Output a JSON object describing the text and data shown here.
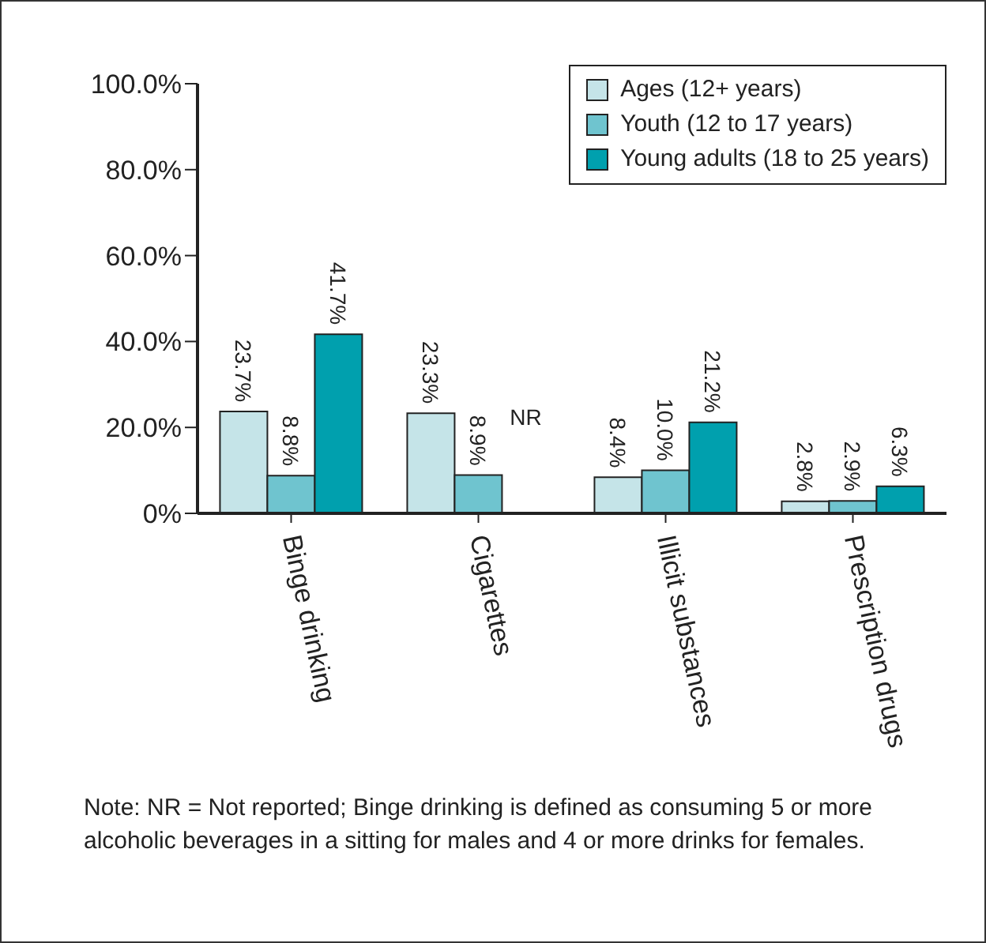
{
  "chart_data": {
    "type": "bar",
    "categories": [
      "Binge drinking",
      "Cigarettes",
      "Illicit substances",
      "Prescription drugs"
    ],
    "series": [
      {
        "name": "Ages (12+ years)",
        "color": "#c5e4e8",
        "values": [
          23.7,
          23.3,
          8.4,
          2.8
        ],
        "value_labels": [
          "23.7%",
          "23.3%",
          "8.4%",
          "2.8%"
        ]
      },
      {
        "name": "Youth (12 to 17 years)",
        "color": "#6fc4cf",
        "values": [
          8.8,
          8.9,
          10.0,
          2.9
        ],
        "value_labels": [
          "8.8%",
          "8.9%",
          "10.0%",
          "2.9%"
        ]
      },
      {
        "name": "Young adults (18 to 25 years)",
        "color": "#00a0ae",
        "values": [
          41.7,
          null,
          21.2,
          6.3
        ],
        "value_labels": [
          "41.7%",
          "NR",
          "21.2%",
          "6.3%"
        ]
      }
    ],
    "ylim": [
      0,
      100
    ],
    "yticks": [
      {
        "value": 0,
        "label": "0%"
      },
      {
        "value": 20,
        "label": "20.0%"
      },
      {
        "value": 40,
        "label": "40.0%"
      },
      {
        "value": 60,
        "label": "60.0%"
      },
      {
        "value": 80,
        "label": "80.0%"
      },
      {
        "value": 100,
        "label": "100.0%"
      }
    ],
    "legend": "top right",
    "annotations": [
      "Note: NR = Not reported; Binge drinking is defined as consuming 5 or more alcoholic beverages in a sitting for males and 4 or more drinks for females."
    ]
  }
}
